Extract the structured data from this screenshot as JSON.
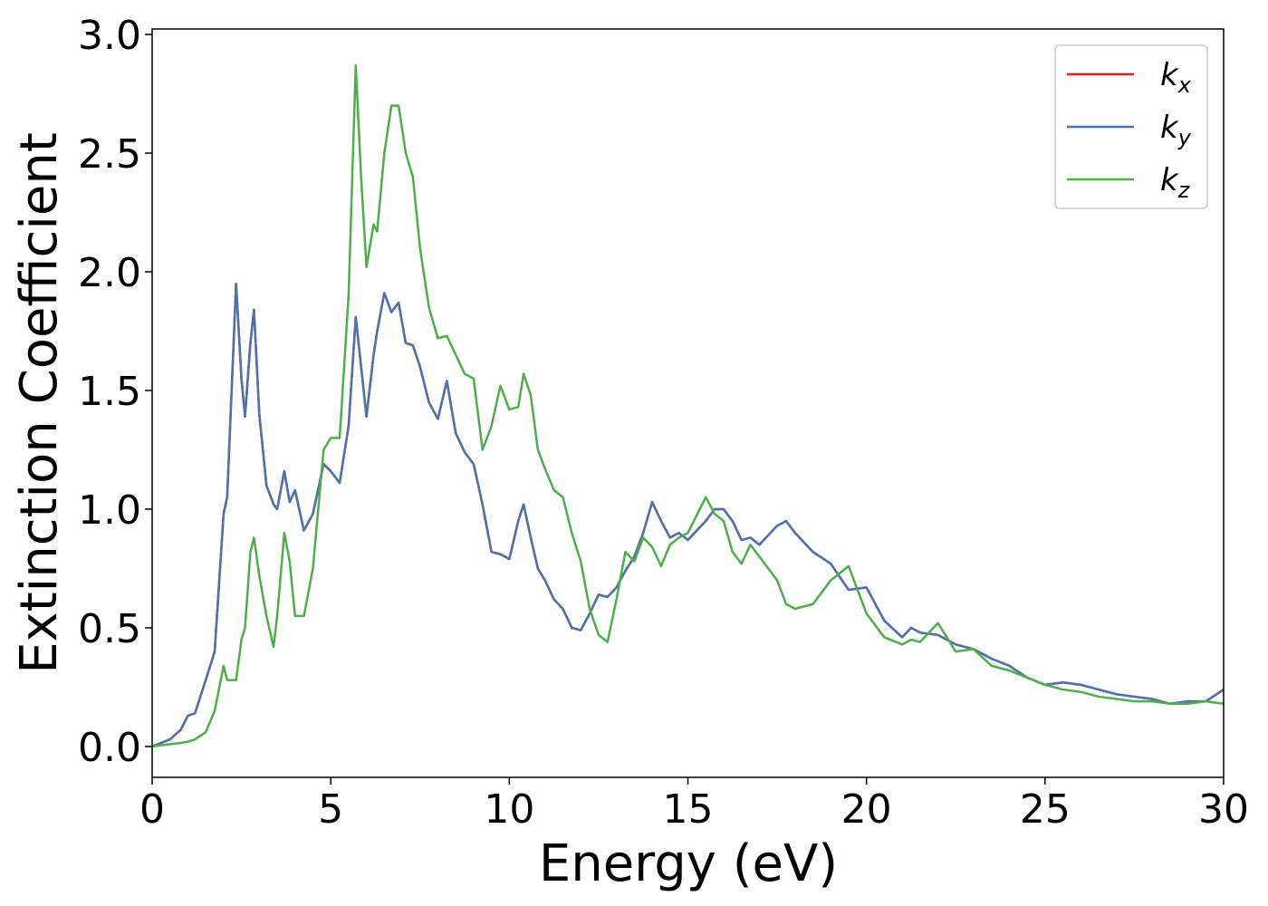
{
  "chart_data": {
    "type": "line",
    "xlabel": "Energy (eV)",
    "ylabel": "Extinction Coefficient",
    "xlim": [
      0,
      30
    ],
    "ylim": [
      -0.13,
      3.023
    ],
    "xticks": [
      0,
      5,
      10,
      15,
      20,
      25,
      30
    ],
    "yticks": [
      {
        "value": 0,
        "label": "0.0"
      },
      {
        "value": 0.5,
        "label": "0.5"
      },
      {
        "value": 1,
        "label": "1.0"
      },
      {
        "value": 1.5,
        "label": "1.5"
      },
      {
        "value": 2,
        "label": "2.0"
      },
      {
        "value": 2.5,
        "label": "2.5"
      },
      {
        "value": 3,
        "label": "3.0"
      }
    ],
    "legend": "upper right",
    "x": [
      0,
      0.5,
      0.8,
      1.0,
      1.2,
      1.5,
      1.75,
      2.0,
      2.1,
      2.35,
      2.5,
      2.6,
      2.75,
      2.85,
      3.0,
      3.2,
      3.4,
      3.5,
      3.7,
      3.85,
      4.0,
      4.25,
      4.5,
      4.8,
      5.0,
      5.25,
      5.5,
      5.7,
      5.85,
      6.0,
      6.2,
      6.3,
      6.5,
      6.7,
      6.9,
      7.1,
      7.3,
      7.5,
      7.75,
      8.0,
      8.25,
      8.5,
      8.75,
      9.0,
      9.25,
      9.5,
      9.75,
      10.0,
      10.25,
      10.4,
      10.6,
      10.8,
      11.0,
      11.25,
      11.5,
      11.75,
      12.0,
      12.25,
      12.5,
      12.75,
      13.0,
      13.25,
      13.5,
      13.75,
      14.0,
      14.25,
      14.5,
      14.75,
      15.0,
      15.5,
      15.75,
      16.0,
      16.25,
      16.5,
      16.75,
      17.0,
      17.5,
      17.75,
      18.0,
      18.5,
      19.0,
      19.5,
      20.0,
      20.5,
      21.0,
      21.25,
      21.5,
      22.0,
      22.5,
      23.0,
      23.5,
      24.0,
      24.5,
      25.0,
      25.5,
      26.0,
      26.5,
      27.0,
      27.5,
      28.0,
      28.5,
      29.0,
      29.5,
      30.0
    ],
    "series": [
      {
        "name": "kx",
        "color": "#e41a1c",
        "values": [
          0.0,
          0.03,
          0.07,
          0.13,
          0.14,
          0.28,
          0.4,
          0.98,
          1.05,
          1.95,
          1.55,
          1.39,
          1.7,
          1.84,
          1.4,
          1.1,
          1.02,
          1.0,
          1.16,
          1.03,
          1.08,
          0.91,
          0.98,
          1.19,
          1.16,
          1.11,
          1.35,
          1.81,
          1.6,
          1.39,
          1.65,
          1.75,
          1.91,
          1.83,
          1.87,
          1.7,
          1.69,
          1.6,
          1.45,
          1.38,
          1.54,
          1.32,
          1.24,
          1.19,
          1.02,
          0.82,
          0.81,
          0.79,
          0.95,
          1.02,
          0.88,
          0.75,
          0.7,
          0.62,
          0.58,
          0.5,
          0.49,
          0.56,
          0.64,
          0.63,
          0.67,
          0.74,
          0.8,
          0.9,
          1.03,
          0.95,
          0.88,
          0.9,
          0.87,
          0.95,
          1.0,
          1.0,
          0.95,
          0.87,
          0.88,
          0.85,
          0.93,
          0.95,
          0.9,
          0.82,
          0.77,
          0.66,
          0.67,
          0.53,
          0.46,
          0.5,
          0.48,
          0.47,
          0.43,
          0.41,
          0.37,
          0.34,
          0.29,
          0.26,
          0.27,
          0.26,
          0.24,
          0.22,
          0.21,
          0.2,
          0.18,
          0.19,
          0.19,
          0.24
        ]
      },
      {
        "name": "ky",
        "color": "#4a74b0",
        "values": [
          0.0,
          0.03,
          0.07,
          0.13,
          0.14,
          0.28,
          0.4,
          0.98,
          1.05,
          1.95,
          1.55,
          1.39,
          1.7,
          1.84,
          1.4,
          1.1,
          1.02,
          1.0,
          1.16,
          1.03,
          1.08,
          0.91,
          0.98,
          1.19,
          1.16,
          1.11,
          1.35,
          1.81,
          1.6,
          1.39,
          1.65,
          1.75,
          1.91,
          1.83,
          1.87,
          1.7,
          1.69,
          1.6,
          1.45,
          1.38,
          1.54,
          1.32,
          1.24,
          1.19,
          1.02,
          0.82,
          0.81,
          0.79,
          0.95,
          1.02,
          0.88,
          0.75,
          0.7,
          0.62,
          0.58,
          0.5,
          0.49,
          0.56,
          0.64,
          0.63,
          0.67,
          0.74,
          0.8,
          0.9,
          1.03,
          0.95,
          0.88,
          0.9,
          0.87,
          0.95,
          1.0,
          1.0,
          0.95,
          0.87,
          0.88,
          0.85,
          0.93,
          0.95,
          0.9,
          0.82,
          0.77,
          0.66,
          0.67,
          0.53,
          0.46,
          0.5,
          0.48,
          0.47,
          0.43,
          0.41,
          0.37,
          0.34,
          0.29,
          0.26,
          0.27,
          0.26,
          0.24,
          0.22,
          0.21,
          0.2,
          0.18,
          0.19,
          0.19,
          0.24
        ]
      },
      {
        "name": "kz",
        "color": "#4daf4a",
        "values": [
          0.0,
          0.01,
          0.015,
          0.02,
          0.03,
          0.06,
          0.15,
          0.34,
          0.28,
          0.28,
          0.45,
          0.5,
          0.82,
          0.88,
          0.72,
          0.55,
          0.42,
          0.55,
          0.9,
          0.78,
          0.55,
          0.55,
          0.75,
          1.25,
          1.3,
          1.3,
          1.9,
          2.87,
          2.4,
          2.02,
          2.2,
          2.17,
          2.5,
          2.7,
          2.7,
          2.5,
          2.4,
          2.1,
          1.85,
          1.72,
          1.73,
          1.65,
          1.57,
          1.55,
          1.25,
          1.35,
          1.52,
          1.42,
          1.43,
          1.57,
          1.48,
          1.25,
          1.17,
          1.08,
          1.05,
          0.9,
          0.78,
          0.58,
          0.47,
          0.44,
          0.62,
          0.82,
          0.78,
          0.88,
          0.84,
          0.76,
          0.85,
          0.88,
          0.9,
          1.05,
          0.98,
          0.95,
          0.82,
          0.77,
          0.85,
          0.8,
          0.7,
          0.6,
          0.58,
          0.6,
          0.7,
          0.76,
          0.56,
          0.46,
          0.43,
          0.45,
          0.44,
          0.52,
          0.4,
          0.41,
          0.34,
          0.32,
          0.29,
          0.26,
          0.24,
          0.23,
          0.21,
          0.2,
          0.19,
          0.19,
          0.18,
          0.18,
          0.19,
          0.18
        ]
      }
    ]
  }
}
